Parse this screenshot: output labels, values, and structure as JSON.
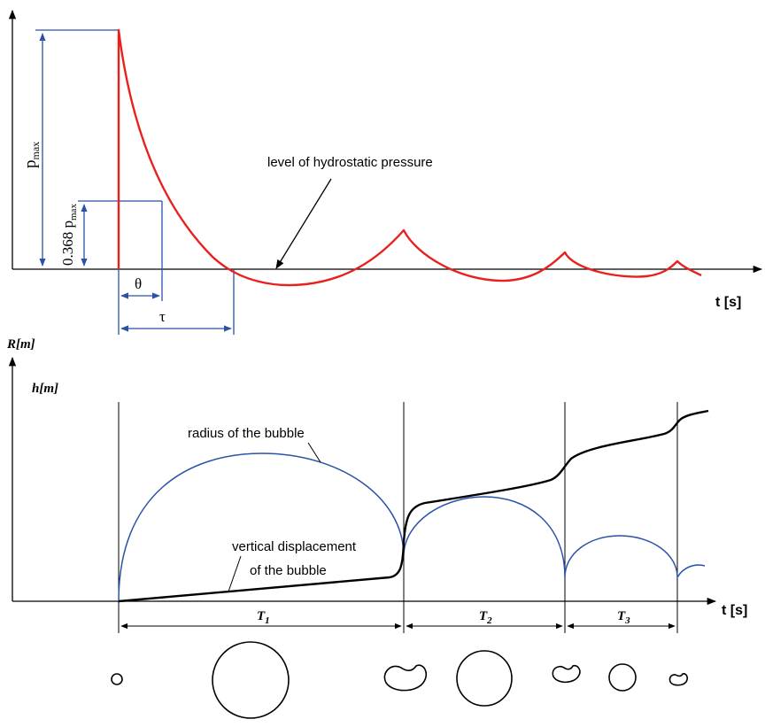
{
  "top_plot": {
    "pressure_color": "#e8201e",
    "dimension_color": "#2a52a8",
    "axis_label": "t [s]",
    "pmax_label": "p",
    "pmax_sub": "max",
    "decay_label_coef": "0.368 p",
    "decay_label_sub": "max",
    "theta_label": "θ",
    "tau_label": "τ",
    "annotation": "level of hydrostatic pressure"
  },
  "bottom_plot": {
    "radius_color": "#2a52a8",
    "displacement_color": "#000000",
    "r_axis_label": "R[m]",
    "h_axis_label": "h[m]",
    "axis_label": "t [s]",
    "radius_annotation": "radius of the bubble",
    "displacement_annotation_line1": "vertical displacement",
    "displacement_annotation_line2": "of the bubble",
    "periods": [
      {
        "label": "T",
        "sub": "1"
      },
      {
        "label": "T",
        "sub": "2"
      },
      {
        "label": "T",
        "sub": "3"
      }
    ]
  },
  "bubble_shapes": [
    {
      "shape": "small-circle"
    },
    {
      "shape": "large-circle"
    },
    {
      "shape": "collapsed-kidney"
    },
    {
      "shape": "medium-circle"
    },
    {
      "shape": "collapsed-kidney-small"
    },
    {
      "shape": "small-circle"
    },
    {
      "shape": "collapsed-kidney-tiny"
    }
  ]
}
